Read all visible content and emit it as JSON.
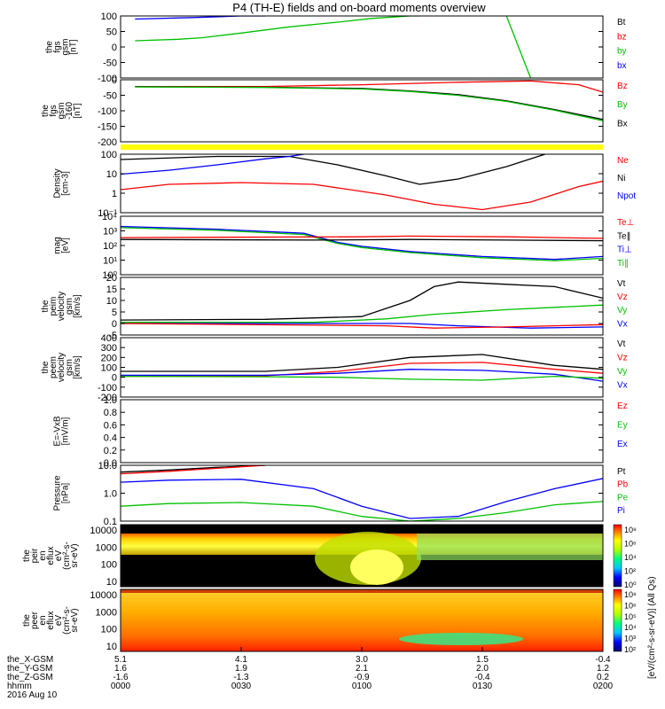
{
  "chart_data": {
    "type": "line",
    "title": "P4 (TH-E) fields and on-board moments overview",
    "date_label": "2016 Aug 10",
    "x_axis": {
      "unit": "hhmm",
      "ticks": [
        "0000",
        "0030",
        "0100",
        "0130",
        "0200"
      ],
      "ephemeris": [
        {
          "name": "the_X-GSM",
          "values": [
            "5.1",
            "4.1",
            "3.0",
            "1.5",
            "-0.4"
          ]
        },
        {
          "name": "the_Y-GSM",
          "values": [
            "1.6",
            "1.9",
            "2.1",
            "2.0",
            "1.2"
          ]
        },
        {
          "name": "the_Z-GSM",
          "values": [
            "-1.6",
            "-1.3",
            "-0.9",
            "-0.4",
            "0.2"
          ]
        }
      ]
    },
    "panels": [
      {
        "id": "fgs",
        "ylabel": [
          "the",
          "fgs",
          "gsm",
          "[nT]"
        ],
        "yticks": [
          "100",
          "50",
          "0",
          "-50",
          "-100"
        ],
        "ylim": [
          -100,
          100
        ],
        "legend": [
          {
            "text": "Bt",
            "color": "#000000"
          },
          {
            "text": "bz",
            "color": "#ff0000"
          },
          {
            "text": "by",
            "color": "#00c000"
          },
          {
            "text": "bx",
            "color": "#0000ff"
          }
        ],
        "series": [
          {
            "name": "bx",
            "color": "#0000ff",
            "x": [
              0.03,
              0.15,
              0.25,
              0.3
            ],
            "y": [
              90,
              95,
              100,
              100
            ]
          },
          {
            "name": "by",
            "color": "#00c000",
            "x": [
              0.03,
              0.12,
              0.17,
              0.25,
              0.35,
              0.45,
              0.52,
              0.6,
              0.62
            ],
            "y": [
              20,
              25,
              30,
              45,
              65,
              80,
              92,
              100,
              100
            ]
          },
          {
            "name": "by",
            "color": "#00c000",
            "x": [
              0.8,
              0.85
            ],
            "y": [
              100,
              -100
            ]
          }
        ]
      },
      {
        "id": "fgs-sub",
        "ylabel": [
          "the",
          "fgs",
          "gsm",
          "-160",
          "[nT]"
        ],
        "yticks": [
          "0",
          "-50",
          "-100",
          "-150",
          "-200"
        ],
        "ylim": [
          -225,
          25
        ],
        "legend": [
          {
            "text": "Bz",
            "color": "#ff0000"
          },
          {
            "text": "By",
            "color": "#00c000"
          },
          {
            "text": "Bx",
            "color": "#000000"
          }
        ],
        "series": [
          {
            "name": "Bz",
            "color": "#ff0000",
            "x": [
              0.03,
              0.3,
              0.5,
              0.7,
              0.85,
              0.95,
              1.0
            ],
            "y": [
              -3,
              -2,
              5,
              15,
              20,
              5,
              -25
            ]
          },
          {
            "name": "Bx",
            "color": "#000000",
            "x": [
              0.03,
              0.3,
              0.5,
              0.6,
              0.7,
              0.8,
              0.9,
              1.0
            ],
            "y": [
              -3,
              -5,
              -10,
              -20,
              -35,
              -60,
              -95,
              -135
            ]
          },
          {
            "name": "By",
            "color": "#00c000",
            "x": [
              0.03,
              0.3,
              0.5,
              0.6,
              0.7,
              0.8,
              0.9,
              1.0
            ],
            "y": [
              -4,
              -6,
              -12,
              -22,
              -38,
              -62,
              -98,
              -140
            ]
          }
        ]
      },
      {
        "id": "density",
        "ylabel": [
          "Density",
          "[cm-3]"
        ],
        "yticks": [
          "100",
          "10",
          "1",
          "10⁻¹"
        ],
        "log": true,
        "ylim": [
          0.1,
          200
        ],
        "legend": [
          {
            "text": "Ne",
            "color": "#ff0000"
          },
          {
            "text": "Ni",
            "color": "#000000"
          },
          {
            "text": "Npot",
            "color": "#0000ff"
          }
        ],
        "series": [
          {
            "name": "Ni",
            "color": "#000000",
            "x": [
              0.0,
              0.2,
              0.35,
              0.45,
              0.55,
              0.62,
              0.7,
              0.8,
              0.88
            ],
            "y": [
              100,
              150,
              150,
              50,
              12,
              4,
              8,
              40,
              200
            ]
          },
          {
            "name": "Npot",
            "color": "#0000ff",
            "x": [
              0.0,
              0.1,
              0.2,
              0.3,
              0.35,
              0.38
            ],
            "y": [
              15,
              25,
              50,
              110,
              150,
              200
            ]
          },
          {
            "name": "Ne",
            "color": "#ff0000",
            "x": [
              0.0,
              0.1,
              0.25,
              0.4,
              0.55,
              0.65,
              0.75,
              0.85,
              0.95,
              1.0
            ],
            "y": [
              2,
              4,
              5,
              4,
              1,
              0.3,
              0.15,
              0.4,
              3,
              6
            ]
          }
        ]
      },
      {
        "id": "temp",
        "ylabel": [
          "mag",
          "[eV]"
        ],
        "yticks": [
          "10⁴",
          "10³",
          "10²",
          "10¹",
          "10⁰"
        ],
        "log": true,
        "ylim": [
          1,
          30000
        ],
        "legend": [
          {
            "text": "Te⊥",
            "color": "#ff0000"
          },
          {
            "text": "Te∥",
            "color": "#000000"
          },
          {
            "text": "Ti⊥",
            "color": "#0000ff"
          },
          {
            "text": "Ti∥",
            "color": "#00c000"
          }
        ],
        "series": [
          {
            "name": "Ti⊥",
            "color": "#0000ff",
            "x": [
              0.0,
              0.2,
              0.38,
              0.45,
              0.5,
              0.6,
              0.75,
              0.9,
              1.0
            ],
            "y": [
              5000,
              3000,
              1500,
              300,
              150,
              60,
              25,
              15,
              25
            ]
          },
          {
            "name": "Ti∥",
            "color": "#00c000",
            "x": [
              0.0,
              0.2,
              0.38,
              0.45,
              0.5,
              0.6,
              0.75,
              0.9,
              1.0
            ],
            "y": [
              4000,
              2500,
              1200,
              250,
              120,
              50,
              20,
              12,
              18
            ]
          },
          {
            "name": "Te⊥",
            "color": "#ff0000",
            "x": [
              0.0,
              0.5,
              0.6,
              0.8,
              1.0
            ],
            "y": [
              700,
              800,
              900,
              800,
              600
            ]
          },
          {
            "name": "Te∥",
            "color": "#000000",
            "x": [
              0.0,
              0.4,
              0.6,
              0.8,
              1.0
            ],
            "y": [
              500,
              450,
              500,
              450,
              400
            ]
          }
        ]
      },
      {
        "id": "peim",
        "ylabel": [
          "the",
          "peim",
          "velocity",
          "gsm",
          "[km/s]"
        ],
        "yticks": [
          "20",
          "15",
          "10",
          "5",
          "0",
          "-5"
        ],
        "ylim": [
          -5,
          20
        ],
        "legend": [
          {
            "text": "Vt",
            "color": "#000000"
          },
          {
            "text": "Vz",
            "color": "#ff0000"
          },
          {
            "text": "Vy",
            "color": "#00c000"
          },
          {
            "text": "Vx",
            "color": "#0000ff"
          }
        ],
        "series": [
          {
            "name": "Vt",
            "color": "#000000",
            "x": [
              0.0,
              0.3,
              0.5,
              0.6,
              0.65,
              0.7,
              0.8,
              0.9,
              1.0
            ],
            "y": [
              1.5,
              1.8,
              3,
              10,
              16,
              18,
              17,
              16,
              11
            ]
          },
          {
            "name": "Vy",
            "color": "#00c000",
            "x": [
              0.0,
              0.4,
              0.55,
              0.65,
              0.8,
              0.9,
              1.0
            ],
            "y": [
              0.5,
              0.5,
              2,
              4,
              6,
              7,
              8
            ]
          },
          {
            "name": "Vx",
            "color": "#0000ff",
            "x": [
              0.0,
              0.6,
              0.7,
              0.85,
              1.0
            ],
            "y": [
              0,
              0,
              -1,
              -2,
              -1.5
            ]
          },
          {
            "name": "Vz",
            "color": "#ff0000",
            "x": [
              0.0,
              0.55,
              0.65,
              0.8,
              1.0
            ],
            "y": [
              0,
              -1,
              -2,
              -1.5,
              -0.5
            ]
          }
        ]
      },
      {
        "id": "peem",
        "ylabel": [
          "the",
          "peem",
          "velocity",
          "gsm",
          "[km/s]"
        ],
        "yticks": [
          "400",
          "300",
          "200",
          "100",
          "0",
          "-100",
          "-200"
        ],
        "ylim": [
          -200,
          400
        ],
        "legend": [
          {
            "text": "Vt",
            "color": "#000000"
          },
          {
            "text": "Vz",
            "color": "#ff0000"
          },
          {
            "text": "Vy",
            "color": "#00c000"
          },
          {
            "text": "Vx",
            "color": "#0000ff"
          }
        ],
        "series": [
          {
            "name": "Vt",
            "color": "#000000",
            "x": [
              0.0,
              0.3,
              0.45,
              0.6,
              0.75,
              0.9,
              1.0
            ],
            "y": [
              60,
              60,
              100,
              200,
              230,
              120,
              80
            ]
          },
          {
            "name": "Vz",
            "color": "#ff0000",
            "x": [
              0.0,
              0.3,
              0.45,
              0.6,
              0.75,
              0.9,
              1.0
            ],
            "y": [
              10,
              15,
              60,
              140,
              150,
              80,
              40
            ]
          },
          {
            "name": "Vx",
            "color": "#0000ff",
            "x": [
              0.0,
              0.3,
              0.45,
              0.6,
              0.75,
              0.9,
              1.0
            ],
            "y": [
              20,
              20,
              40,
              80,
              70,
              30,
              -40
            ]
          },
          {
            "name": "Vy",
            "color": "#00c000",
            "x": [
              0.0,
              0.3,
              0.45,
              0.6,
              0.75,
              0.9,
              1.0
            ],
            "y": [
              10,
              5,
              0,
              -20,
              -30,
              10,
              -10
            ]
          }
        ]
      },
      {
        "id": "efield",
        "ylabel": [
          "E=-VxB",
          "[mV/m]"
        ],
        "yticks": [
          "1.0",
          "0.8",
          "0.6",
          "0.4",
          "0.2",
          "0.0"
        ],
        "ylim": [
          0,
          1
        ],
        "legend": [
          {
            "text": "Ez",
            "color": "#ff0000"
          },
          {
            "text": "Ey",
            "color": "#00c000"
          },
          {
            "text": "Ex",
            "color": "#0000ff"
          }
        ],
        "series": []
      },
      {
        "id": "pressure",
        "ylabel": [
          "Pressure",
          "[nPa]"
        ],
        "yticks": [
          "10.0",
          "1.0",
          "0.1"
        ],
        "log": true,
        "ylim": [
          0.06,
          25
        ],
        "legend": [
          {
            "text": "Pt",
            "color": "#000000"
          },
          {
            "text": "Pb",
            "color": "#ff0000"
          },
          {
            "text": "Pe",
            "color": "#00c000"
          },
          {
            "text": "Pi",
            "color": "#0000ff"
          }
        ],
        "series": [
          {
            "name": "Pt",
            "color": "#000000",
            "x": [
              0.0,
              0.1,
              0.2,
              0.3
            ],
            "y": [
              12,
              15,
              20,
              25
            ]
          },
          {
            "name": "Pb",
            "color": "#ff0000",
            "x": [
              0.0,
              0.1,
              0.2,
              0.3
            ],
            "y": [
              10,
              13,
              18,
              25
            ]
          },
          {
            "name": "Pi",
            "color": "#0000ff",
            "x": [
              0.0,
              0.1,
              0.25,
              0.4,
              0.5,
              0.6,
              0.7,
              0.8,
              0.9,
              1.0
            ],
            "y": [
              4,
              5,
              5.5,
              2,
              0.3,
              0.08,
              0.1,
              0.5,
              2,
              6
            ]
          },
          {
            "name": "Pe",
            "color": "#00c000",
            "x": [
              0.0,
              0.1,
              0.25,
              0.4,
              0.5,
              0.6,
              0.7,
              0.8,
              0.9,
              1.0
            ],
            "y": [
              0.3,
              0.4,
              0.45,
              0.3,
              0.1,
              0.06,
              0.08,
              0.15,
              0.35,
              0.5
            ]
          }
        ]
      }
    ],
    "spectrograms": [
      {
        "id": "peir",
        "ylabel": [
          "the",
          "peir",
          "en",
          "eflux",
          "eV",
          "(cm²-s-",
          "sr-eV)"
        ],
        "yticks": [
          "10000",
          "1000",
          "100",
          "10"
        ]
      },
      {
        "id": "peer",
        "ylabel": [
          "the",
          "peer",
          "en",
          "eflux",
          "eV",
          "(cm²-s-",
          "sr-eV)"
        ],
        "yticks": [
          "10000",
          "1000",
          "100",
          "10"
        ]
      }
    ],
    "colorbars": [
      {
        "ticks": [
          "10⁸",
          "10⁶",
          "10⁴",
          "10²",
          "10⁰"
        ]
      },
      {
        "ticks": [
          "10⁸",
          "10⁶",
          "10⁵",
          "10⁴",
          "10³",
          "10²"
        ]
      }
    ],
    "colorbar_label": "[eV/(cm²-s-sr-eV)] (All Qs)",
    "colors": {
      "yellow_bar": "#ffff00",
      "black": "#000000",
      "red": "#ff0000",
      "green": "#00c000",
      "blue": "#0000ff"
    }
  }
}
